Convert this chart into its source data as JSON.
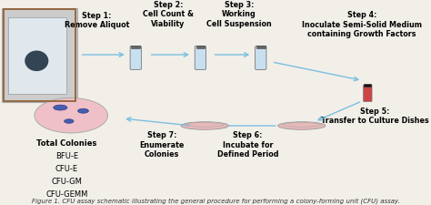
{
  "bg_color": "#f2efe9",
  "arrow_color": "#7bbfdf",
  "arrow_dark": "#6699bb",
  "tube_color": "#c8dff0",
  "tube_cap_color": "#999999",
  "vial_color": "#cc4444",
  "vial_cap_color": "#111111",
  "dish_color": "#e8b8b8",
  "dish_rim_color": "#d09898",
  "colony_circle_color": "#f0c0c8",
  "colony_blob_color1": "#3355aa",
  "colony_blob_color2": "#5577cc",
  "colony_blob_edge": "#223388",
  "label_fontsize": 5.8,
  "colony_fontsize": 6.0,
  "caption_fontsize": 5.0,
  "step1_label": "Step 1:\nRemove Aliquot",
  "step2_label": "Step 2:\nCell Count &\nViability",
  "step3_label": "Step 3:\nWorking\nCell Suspension",
  "step4_label": "Step 4:\nInoculate Semi-Solid Medium\ncontaining Growth Factors",
  "step5_label": "Step 5:\nTransfer to Culture Dishes",
  "step6_label": "Step 6:\nIncubate for\nDefined Period",
  "step7_label": "Step 7:\nEnumerate\nColonies",
  "colony_types": [
    "Total Colonies",
    "BFU-E",
    "CFU-E",
    "CFU-GM",
    "CFU-GEMM"
  ],
  "caption": "Figure 1. CFU assay schematic illustrating the general procedure for performing a colony-forming unit (CFU) assay."
}
